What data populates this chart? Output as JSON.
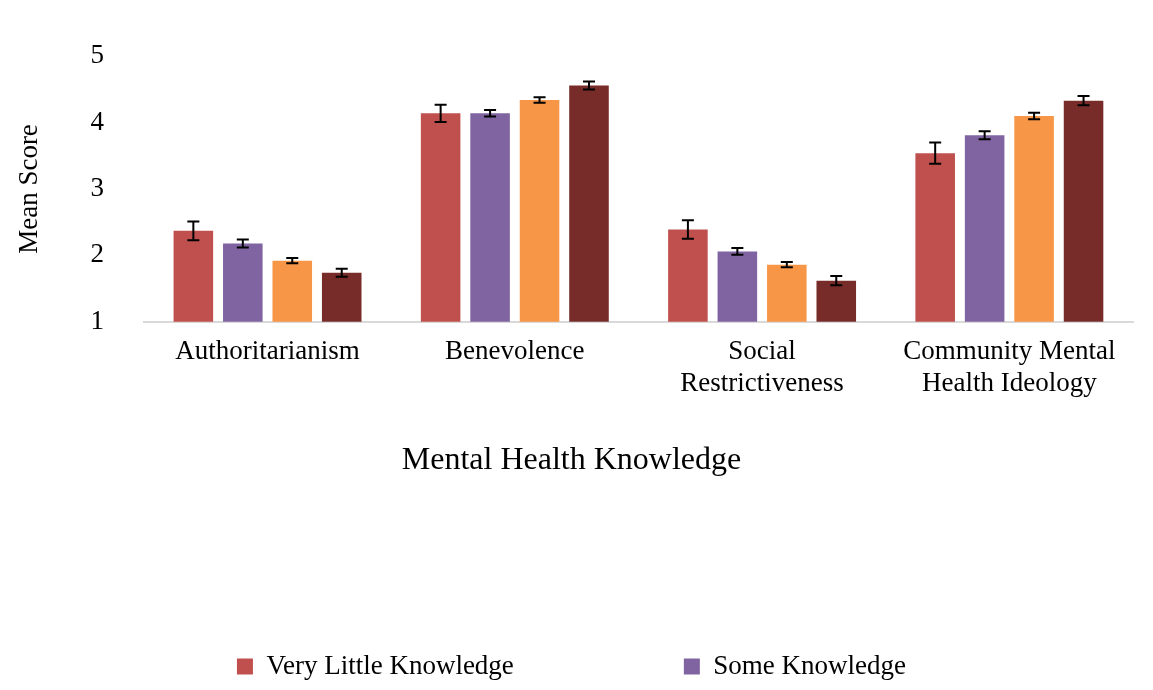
{
  "chart_data": {
    "type": "bar",
    "ylabel": "Mean Score",
    "legend_title": "Mental Health Knowledge",
    "categories": [
      "Authoritarianism",
      "Benevolence",
      "Social Restrictiveness",
      "Community Mental Health Ideology"
    ],
    "series": [
      {
        "name": "Very Little Knowledge",
        "color": "#c0504d",
        "values": [
          2.37,
          4.14,
          2.39,
          3.54
        ],
        "errors": [
          0.14,
          0.13,
          0.14,
          0.16
        ]
      },
      {
        "name": "Some Knowledge",
        "color": "#8064a2",
        "values": [
          2.18,
          4.14,
          2.06,
          3.81
        ],
        "errors": [
          0.06,
          0.05,
          0.05,
          0.06
        ]
      },
      {
        "color": "#f79646",
        "values": [
          1.92,
          4.34,
          1.86,
          4.1
        ],
        "errors": [
          0.04,
          0.04,
          0.04,
          0.05
        ]
      },
      {
        "color": "#772c2a",
        "values": [
          1.74,
          4.56,
          1.62,
          4.33
        ],
        "errors": [
          0.06,
          0.06,
          0.07,
          0.07
        ]
      }
    ],
    "ylim": [
      1,
      5
    ],
    "yticks": [
      1,
      2,
      3,
      4,
      5
    ],
    "grid": false,
    "legend": "bottom"
  }
}
